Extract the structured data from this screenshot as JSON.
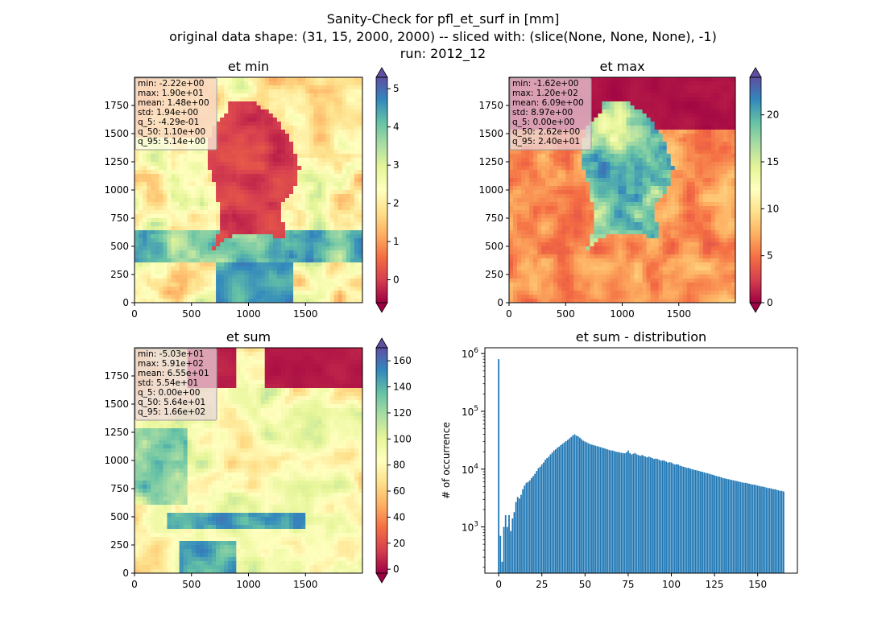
{
  "figure": {
    "title_lines": [
      "Sanity-Check for pfl_et_surf in [mm]",
      "original data shape: (31, 15, 2000, 2000) -- sliced with: (slice(None, None, None), -1)",
      "run: 2012_12"
    ]
  },
  "colormap": {
    "name": "Spectral",
    "stops": [
      "#9e0142",
      "#d53e4f",
      "#f46d43",
      "#fdae61",
      "#fee08b",
      "#ffffbf",
      "#e6f598",
      "#abdda4",
      "#66c2a5",
      "#3288bd",
      "#5e4fa2"
    ]
  },
  "chart_data": [
    {
      "type": "heatmap",
      "title": "et min",
      "xlim": [
        0,
        2000
      ],
      "ylim": [
        0,
        2000
      ],
      "x_ticks": [
        0,
        500,
        1000,
        1500
      ],
      "y_ticks": [
        0,
        250,
        500,
        750,
        1000,
        1250,
        1500,
        1750
      ],
      "colorbar": {
        "range": [
          -0.6,
          5.3
        ],
        "ticks": [
          0,
          1,
          2,
          3,
          4,
          5
        ],
        "extend": "both"
      },
      "stats": [
        "min: -2.22e+00",
        "max: 1.90e+01",
        "mean: 1.48e+00",
        "std: 1.94e+00",
        "q_5: -4.29e-01",
        "q_50: 1.10e+00",
        "q_95: 5.14e+00"
      ]
    },
    {
      "type": "heatmap",
      "title": "et max",
      "xlim": [
        0,
        2000
      ],
      "ylim": [
        0,
        2000
      ],
      "x_ticks": [
        0,
        500,
        1000,
        1500
      ],
      "y_ticks": [
        0,
        250,
        500,
        750,
        1000,
        1250,
        1500,
        1750
      ],
      "colorbar": {
        "range": [
          0,
          24
        ],
        "ticks": [
          0,
          5,
          10,
          15,
          20
        ],
        "extend": "both"
      },
      "stats": [
        "min: -1.62e+00",
        "max: 1.20e+02",
        "mean: 6.09e+00",
        "std: 8.97e+00",
        "q_5: 0.00e+00",
        "q_50: 2.62e+00",
        "q_95: 2.40e+01"
      ]
    },
    {
      "type": "heatmap",
      "title": "et sum",
      "xlim": [
        0,
        2000
      ],
      "ylim": [
        0,
        2000
      ],
      "x_ticks": [
        0,
        500,
        1000,
        1500
      ],
      "y_ticks": [
        0,
        250,
        500,
        750,
        1000,
        1250,
        1500,
        1750
      ],
      "colorbar": {
        "range": [
          -3,
          170
        ],
        "ticks": [
          0,
          20,
          40,
          60,
          80,
          100,
          120,
          140,
          160
        ],
        "extend": "both"
      },
      "stats": [
        "min: -5.03e+01",
        "max: 5.91e+02",
        "mean: 6.55e+01",
        "std: 5.54e+01",
        "q_5: 0.00e+00",
        "q_50: 5.64e+01",
        "q_95: 1.66e+02"
      ]
    },
    {
      "type": "bar",
      "title": "et sum - distribution",
      "ylabel": "# of occurrence",
      "xlim": [
        -8,
        173
      ],
      "ylim_log10": [
        2.2,
        6.1
      ],
      "y_scale": "log",
      "x_ticks": [
        0,
        25,
        50,
        75,
        100,
        125,
        150
      ],
      "y_ticks": [
        1000,
        10000,
        100000,
        1000000
      ],
      "y_tick_labels": [
        "10^3",
        "10^4",
        "10^5",
        "10^6"
      ],
      "bin_width": 0.83,
      "x": [
        0,
        1,
        2,
        3,
        4,
        5,
        6,
        7,
        8,
        9,
        10,
        11,
        12,
        13,
        14,
        15,
        16,
        17,
        18,
        19,
        20,
        21,
        22,
        23,
        24,
        25,
        26,
        27,
        28,
        29,
        30,
        31,
        32,
        33,
        34,
        35,
        36,
        37,
        38,
        39,
        40,
        41,
        42,
        43,
        44,
        45,
        46,
        47,
        48,
        49,
        50,
        51,
        52,
        53,
        54,
        55,
        56,
        57,
        58,
        59,
        60,
        61,
        62,
        63,
        64,
        65,
        66,
        67,
        68,
        69,
        70,
        71,
        72,
        73,
        74,
        75,
        76,
        77,
        78,
        79,
        80,
        81,
        82,
        83,
        84,
        85,
        86,
        87,
        88,
        89,
        90,
        91,
        92,
        93,
        94,
        95,
        96,
        97,
        98,
        99,
        100,
        101,
        102,
        103,
        104,
        105,
        106,
        107,
        108,
        109,
        110,
        111,
        112,
        113,
        114,
        115,
        116,
        117,
        118,
        119,
        120,
        121,
        122,
        123,
        124,
        125,
        126,
        127,
        128,
        129,
        130,
        131,
        132,
        133,
        134,
        135,
        136,
        137,
        138,
        139,
        140,
        141,
        142,
        143,
        144,
        145,
        146,
        147,
        148,
        149,
        150,
        151,
        152,
        153,
        154,
        155,
        156,
        157,
        158,
        159,
        160,
        161,
        162,
        163,
        164,
        165
      ],
      "values": [
        800000,
        700,
        250,
        1000,
        1600,
        1000,
        1600,
        850,
        1400,
        1800,
        2700,
        3300,
        3100,
        3600,
        4500,
        5200,
        5800,
        6000,
        6400,
        7000,
        7600,
        8300,
        9300,
        10400,
        11000,
        12100,
        13000,
        14500,
        15500,
        16400,
        18000,
        19300,
        21000,
        22000,
        23500,
        24500,
        26000,
        27500,
        29000,
        30500,
        32000,
        34000,
        36000,
        38500,
        40000,
        38000,
        37000,
        35000,
        33000,
        31000,
        30000,
        29000,
        28000,
        27000,
        26500,
        26000,
        25500,
        25000,
        24500,
        24000,
        23500,
        23000,
        22500,
        22000,
        21500,
        21000,
        21000,
        20500,
        20000,
        19800,
        19500,
        19200,
        19000,
        18800,
        19500,
        21000,
        19000,
        18000,
        18500,
        19000,
        18000,
        17500,
        17000,
        17500,
        17000,
        16500,
        16000,
        16500,
        16000,
        15500,
        15000,
        15200,
        15000,
        14500,
        14000,
        14200,
        14000,
        13500,
        13000,
        13200,
        13000,
        12500,
        12000,
        12200,
        12000,
        11500,
        11200,
        11000,
        10800,
        10500,
        10500,
        10200,
        10000,
        9800,
        9600,
        9500,
        9300,
        9100,
        9000,
        8800,
        8600,
        8500,
        8300,
        8100,
        8000,
        7800,
        7600,
        7500,
        7400,
        7200,
        7000,
        6900,
        6800,
        6700,
        6600,
        6500,
        6400,
        6300,
        6200,
        6100,
        6000,
        5900,
        5800,
        5800,
        5700,
        5600,
        5500,
        5400,
        5400,
        5300,
        5200,
        5100,
        5000,
        5000,
        4900,
        4800,
        4700,
        4700,
        4600,
        4500,
        4500,
        4400,
        4300,
        4200,
        4200,
        4100
      ]
    }
  ]
}
